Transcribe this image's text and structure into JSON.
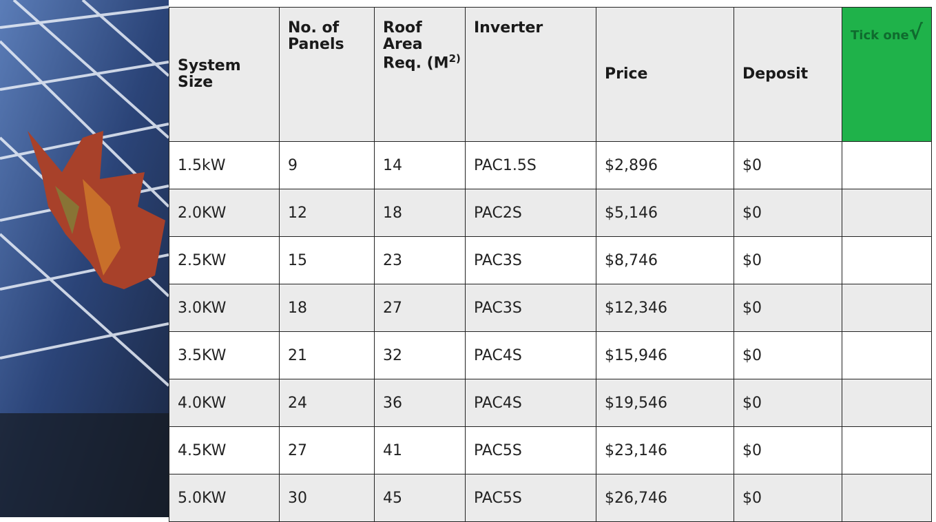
{
  "table": {
    "header": [
      {
        "text": "System Size"
      },
      {
        "text": "No. of Panels"
      },
      {
        "text": "Roof Area Req. (M",
        "sup": "2)"
      },
      {
        "text": "Inverter"
      },
      {
        "text": "Price"
      },
      {
        "text": "Deposit"
      },
      {
        "text": "Tick one",
        "mark": "√"
      }
    ],
    "rows": [
      [
        "1.5kW",
        "9",
        "14",
        "PAC1.5S",
        "$2,896",
        "$0"
      ],
      [
        "2.0KW",
        "12",
        "18",
        "PAC2S",
        "$5,146",
        "$0"
      ],
      [
        "2.5KW",
        "15",
        "23",
        "PAC3S",
        "$8,746",
        "$0"
      ],
      [
        "3.0KW",
        "18",
        "27",
        "PAC3S",
        "$12,346",
        "$0"
      ],
      [
        "3.5KW",
        "21",
        "32",
        "PAC4S",
        "$15,946",
        "$0"
      ],
      [
        "4.0KW",
        "24",
        "36",
        "PAC4S",
        "$19,546",
        "$0"
      ],
      [
        "4.5KW",
        "27",
        "41",
        "PAC5S",
        "$23,146",
        "$0"
      ],
      [
        "5.0KW",
        "30",
        "45",
        "PAC5S",
        "$26,746",
        "$0"
      ]
    ]
  }
}
